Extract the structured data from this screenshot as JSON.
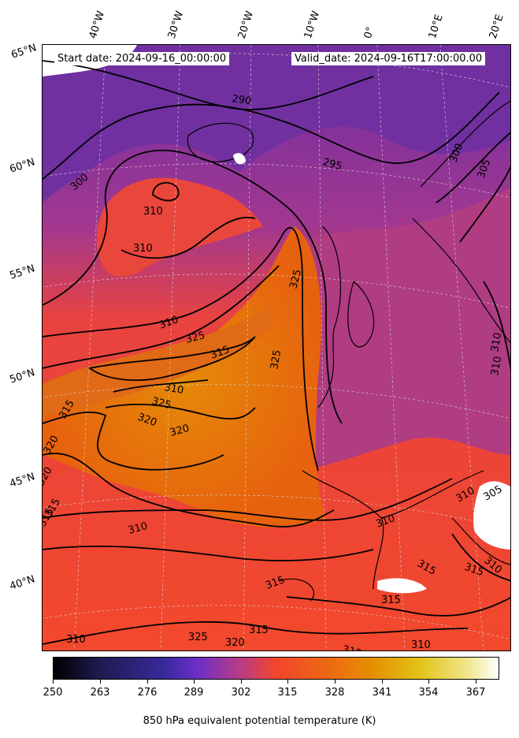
{
  "header": {
    "start_date": "Start date: 2024-09-16_00:00:00",
    "valid_date": "Valid_date: 2024-09-16T17:00:00.00"
  },
  "map": {
    "projection_style": "conic / lambert",
    "lon_labels": [
      "40°W",
      "30°W",
      "20°W",
      "10°W",
      "0°",
      "10°E",
      "20°E"
    ],
    "lat_labels": [
      "65°N",
      "60°N",
      "55°N",
      "50°N",
      "45°N",
      "40°N"
    ],
    "contour_labels": [
      "300",
      "290",
      "295",
      "300",
      "305",
      "310",
      "310",
      "310",
      "310",
      "325",
      "325",
      "325",
      "315",
      "310",
      "325",
      "320",
      "320",
      "315",
      "320",
      "320",
      "315",
      "310",
      "310",
      "310",
      "310",
      "315",
      "315",
      "315",
      "315",
      "315",
      "310",
      "325",
      "320",
      "315",
      "310",
      "305",
      "310",
      "315"
    ],
    "colors": {
      "cold": "#6a2aa0",
      "mid": "#c83c7a",
      "warm": "#f24a2c",
      "hot": "#e37a06",
      "land_line": "#000000",
      "graticule": "#cccccc"
    }
  },
  "colorbar": {
    "title": "850 hPa equivalent potential temperature (K)",
    "ticks": [
      "250",
      "263",
      "276",
      "289",
      "302",
      "315",
      "328",
      "341",
      "354",
      "367"
    ],
    "range": [
      250,
      373
    ],
    "colormap": "CMRmap-like (black-purple-red-orange-yellow-white)"
  }
}
